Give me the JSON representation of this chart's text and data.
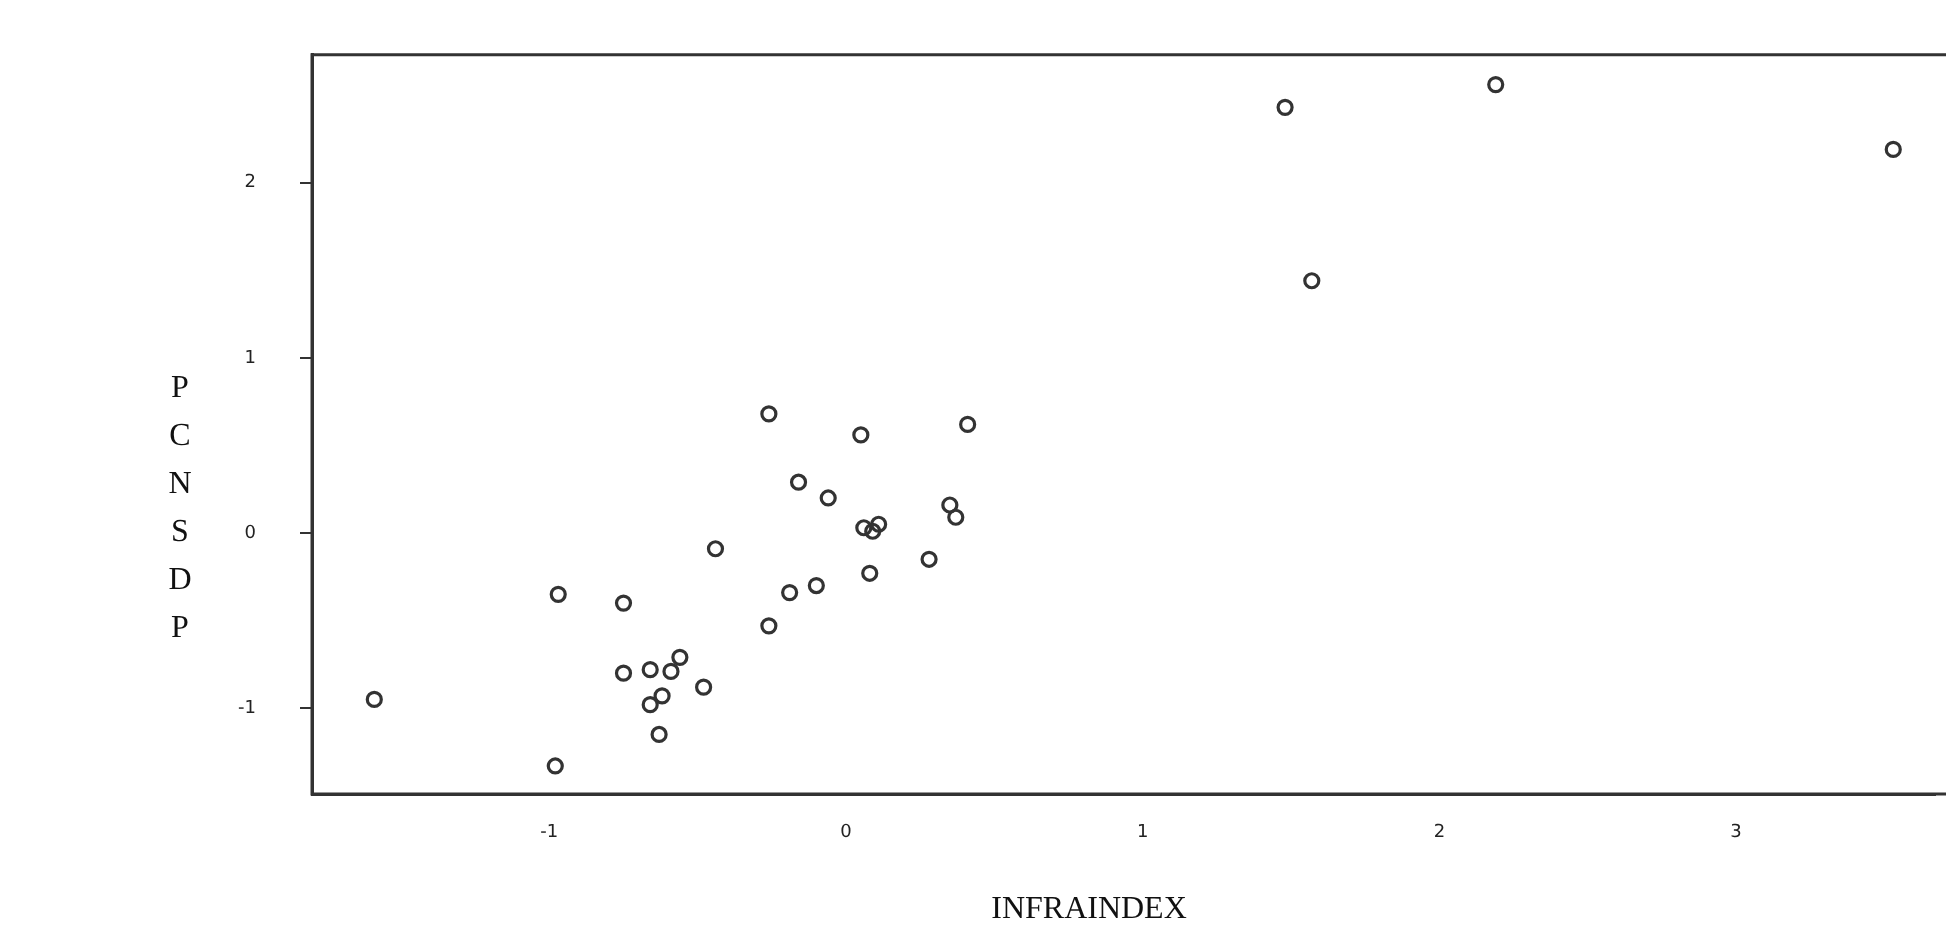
{
  "chart_data": {
    "type": "scatter",
    "xlabel": "INFRAINDEX",
    "ylabel": "PCNSDP",
    "marker": "circle",
    "grid": false,
    "legend": false,
    "xlim": [
      -1.8,
      3.67
    ],
    "ylim": [
      -1.49,
      2.73
    ],
    "xticks": [
      -1,
      0,
      1,
      2,
      3
    ],
    "yticks": [
      -1,
      0,
      1,
      2
    ],
    "series": [
      {
        "color": "#333333",
        "x": [
          -1.59,
          -0.97,
          -0.75,
          -0.98,
          -0.75,
          -0.66,
          -0.59,
          -0.56,
          -0.62,
          -0.66,
          -0.63,
          -0.48,
          -0.44,
          -0.26,
          -0.16,
          -0.06,
          -0.19,
          -0.1,
          -0.26,
          0.05,
          0.06,
          0.09,
          0.11,
          0.08,
          0.28,
          0.35,
          0.37,
          0.41,
          1.48,
          2.19,
          3.53,
          1.57
        ],
        "values": [
          -0.95,
          -0.35,
          -0.4,
          -1.33,
          -0.8,
          -0.78,
          -0.79,
          -0.71,
          -0.93,
          -0.98,
          -1.15,
          -0.88,
          -0.09,
          0.68,
          0.29,
          0.2,
          -0.34,
          -0.3,
          -0.53,
          0.56,
          0.03,
          0.01,
          0.05,
          -0.23,
          -0.15,
          0.16,
          0.09,
          0.62,
          2.43,
          2.56,
          2.19,
          1.44
        ]
      }
    ]
  }
}
